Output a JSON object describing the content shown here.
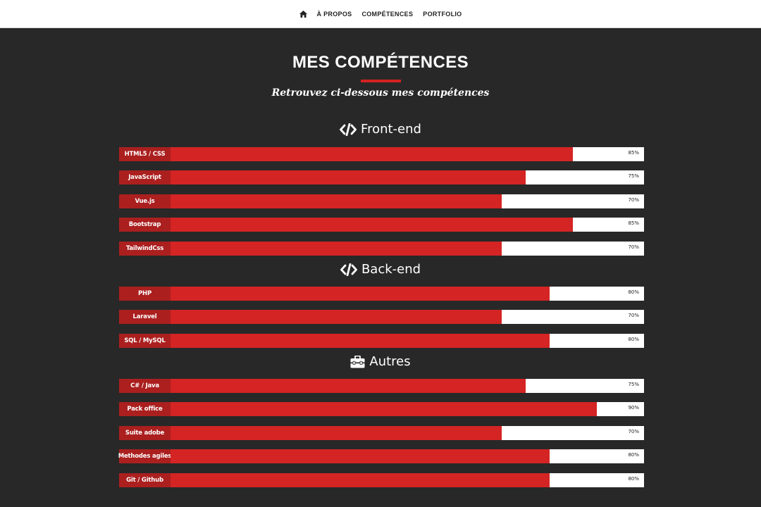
{
  "nav": {
    "home_icon": "home-icon",
    "links": [
      "À PROPOS",
      "COMPÉTENCES",
      "PORTFOLIO"
    ]
  },
  "colors": {
    "page_background": "#282828",
    "accent": "#d42424",
    "label_background": "#ab1f1f",
    "track": "#ffffff"
  },
  "section": {
    "title": "MES COMPÉTENCES",
    "subtitle": "Retrouvez ci-dessous mes compétences"
  },
  "groups": [
    {
      "icon": "code-icon",
      "heading": "Front-end",
      "skills": [
        {
          "label": "HTML5 / CSS",
          "percent": "85%",
          "value": 85
        },
        {
          "label": "JavaScript",
          "percent": "75%",
          "value": 75
        },
        {
          "label": "Vue.js",
          "percent": "70%",
          "value": 70
        },
        {
          "label": "Bootstrap",
          "percent": "85%",
          "value": 85
        },
        {
          "label": "TailwindCss",
          "percent": "70%",
          "value": 70
        }
      ]
    },
    {
      "icon": "code-icon",
      "heading": "Back-end",
      "skills": [
        {
          "label": "PHP",
          "percent": "80%",
          "value": 80
        },
        {
          "label": "Laravel",
          "percent": "70%",
          "value": 70
        },
        {
          "label": "SQL / MySQL",
          "percent": "80%",
          "value": 80
        }
      ]
    },
    {
      "icon": "toolbox-icon",
      "heading": "Autres",
      "skills": [
        {
          "label": "C# / Java",
          "percent": "75%",
          "value": 75
        },
        {
          "label": "Pack office",
          "percent": "90%",
          "value": 90
        },
        {
          "label": "Suite adobe",
          "percent": "70%",
          "value": 70
        },
        {
          "label": "Methodes agiles",
          "percent": "80%",
          "value": 80
        },
        {
          "label": "Git / Github",
          "percent": "80%",
          "value": 80
        }
      ]
    }
  ]
}
